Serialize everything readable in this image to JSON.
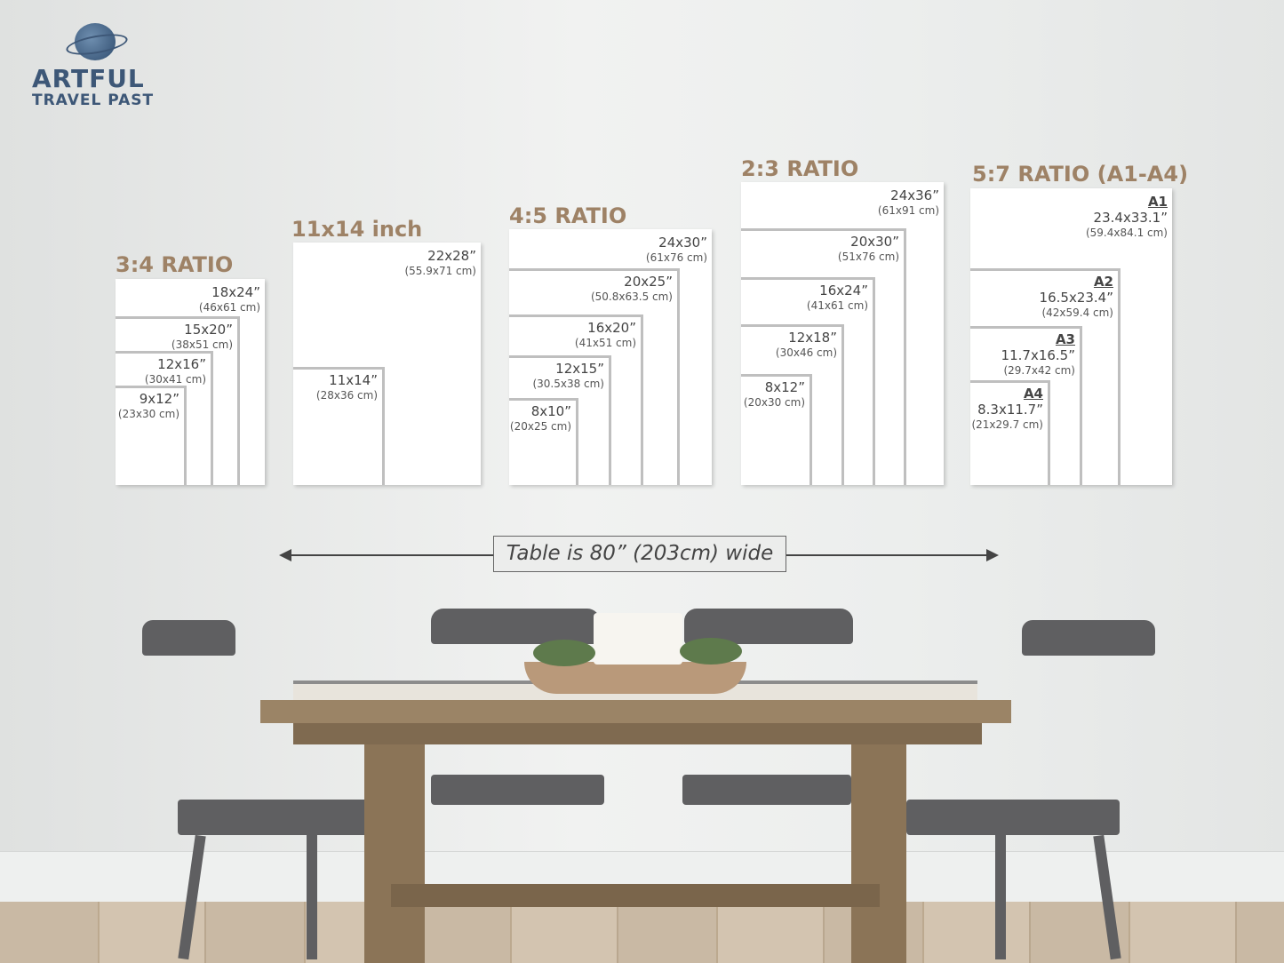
{
  "logo": {
    "line1": "ARTFUL",
    "line2": "TRAVEL PAST"
  },
  "groups": [
    {
      "title": "3:4 RATIO",
      "sizes": [
        {
          "in": "18x24”",
          "cm": "(46x61 cm)"
        },
        {
          "in": "15x20”",
          "cm": "(38x51 cm)"
        },
        {
          "in": "12x16”",
          "cm": "(30x41 cm)"
        },
        {
          "in": "9x12”",
          "cm": "(23x30 cm)"
        }
      ]
    },
    {
      "title": "11x14 inch",
      "sizes": [
        {
          "in": "22x28”",
          "cm": "(55.9x71 cm)"
        },
        {
          "in": "11x14”",
          "cm": "(28x36 cm)"
        }
      ]
    },
    {
      "title": "4:5 RATIO",
      "sizes": [
        {
          "in": "24x30”",
          "cm": "(61x76 cm)"
        },
        {
          "in": "20x25”",
          "cm": "(50.8x63.5 cm)"
        },
        {
          "in": "16x20”",
          "cm": "(41x51 cm)"
        },
        {
          "in": "12x15”",
          "cm": "(30.5x38 cm)"
        },
        {
          "in": "8x10”",
          "cm": "(20x25 cm)"
        }
      ]
    },
    {
      "title": "2:3 RATIO",
      "sizes": [
        {
          "in": "24x36”",
          "cm": "(61x91 cm)"
        },
        {
          "in": "20x30”",
          "cm": "(51x76 cm)"
        },
        {
          "in": "16x24”",
          "cm": "(41x61 cm)"
        },
        {
          "in": "12x18”",
          "cm": "(30x46 cm)"
        },
        {
          "in": "8x12”",
          "cm": "(20x30 cm)"
        }
      ]
    },
    {
      "title": "5:7 RATIO (A1-A4)",
      "sizes": [
        {
          "a": "A1",
          "in": "23.4x33.1”",
          "cm": "(59.4x84.1 cm)"
        },
        {
          "a": "A2",
          "in": "16.5x23.4”",
          "cm": "(42x59.4 cm)"
        },
        {
          "a": "A3",
          "in": "11.7x16.5”",
          "cm": "(29.7x42 cm)"
        },
        {
          "a": "A4",
          "in": "8.3x11.7”",
          "cm": "(21x29.7 cm)"
        }
      ]
    }
  ],
  "table_note": "Table is 80” (203cm) wide",
  "colors": {
    "title": "#9e8266",
    "logo": "#3d5777"
  }
}
